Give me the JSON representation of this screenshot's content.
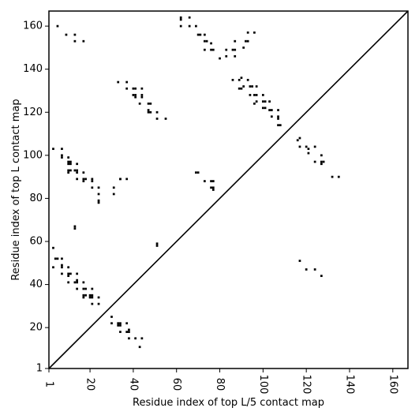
{
  "chart_data": {
    "type": "scatter",
    "title": "",
    "xlabel": "Residue index of top L/5 contact map",
    "ylabel": "Residue index of top L contact map",
    "xlim": [
      1,
      167
    ],
    "ylim": [
      1,
      167
    ],
    "x_ticks": [
      1,
      20,
      40,
      60,
      80,
      100,
      120,
      140,
      160
    ],
    "y_ticks": [
      1,
      20,
      40,
      60,
      80,
      100,
      120,
      140,
      160
    ],
    "diagonal": true,
    "grid": false,
    "legend": "none",
    "marker_color": "#000000",
    "series": [
      {
        "role": "upper-triangle",
        "points": [
          [
            5,
            160
          ],
          [
            9,
            156
          ],
          [
            13,
            156
          ],
          [
            13,
            153
          ],
          [
            17,
            153
          ],
          [
            62,
            164
          ],
          [
            62,
            163
          ],
          [
            62,
            160
          ],
          [
            66,
            164
          ],
          [
            66,
            160
          ],
          [
            69,
            160
          ],
          [
            70,
            156
          ],
          [
            71,
            156
          ],
          [
            73,
            156
          ],
          [
            73,
            153
          ],
          [
            74,
            153
          ],
          [
            73,
            149
          ],
          [
            76,
            152
          ],
          [
            76,
            149
          ],
          [
            77,
            149
          ],
          [
            80,
            145
          ],
          [
            83,
            146
          ],
          [
            83,
            149
          ],
          [
            86,
            149
          ],
          [
            87,
            149
          ],
          [
            87,
            146
          ],
          [
            87,
            153
          ],
          [
            86,
            135
          ],
          [
            89,
            135
          ],
          [
            90,
            136
          ],
          [
            89,
            131
          ],
          [
            90,
            131
          ],
          [
            91,
            132
          ],
          [
            91,
            150
          ],
          [
            92,
            153
          ],
          [
            93,
            153
          ],
          [
            93,
            157
          ],
          [
            96,
            157
          ],
          [
            93,
            135
          ],
          [
            94,
            132
          ],
          [
            95,
            132
          ],
          [
            94,
            128
          ],
          [
            97,
            132
          ],
          [
            96,
            128
          ],
          [
            97,
            128
          ],
          [
            96,
            124
          ],
          [
            97,
            125
          ],
          [
            100,
            128
          ],
          [
            100,
            125
          ],
          [
            101,
            125
          ],
          [
            100,
            122
          ],
          [
            101,
            122
          ],
          [
            103,
            125
          ],
          [
            103,
            121
          ],
          [
            104,
            121
          ],
          [
            104,
            118
          ],
          [
            107,
            121
          ],
          [
            107,
            118
          ],
          [
            107,
            117
          ],
          [
            107,
            114
          ],
          [
            108,
            114
          ],
          [
            33,
            134
          ],
          [
            37,
            134
          ],
          [
            37,
            131
          ],
          [
            40,
            131
          ],
          [
            41,
            131
          ],
          [
            40,
            128
          ],
          [
            41,
            128
          ],
          [
            41,
            127
          ],
          [
            44,
            131
          ],
          [
            44,
            128
          ],
          [
            44,
            127
          ],
          [
            43,
            124
          ],
          [
            47,
            124
          ],
          [
            48,
            124
          ],
          [
            47,
            121
          ],
          [
            47,
            120
          ],
          [
            48,
            120
          ],
          [
            51,
            120
          ],
          [
            51,
            117
          ],
          [
            55,
            117
          ],
          [
            3,
            103
          ],
          [
            7,
            103
          ],
          [
            7,
            100
          ],
          [
            7,
            99
          ],
          [
            10,
            99
          ],
          [
            10,
            97
          ],
          [
            11,
            97
          ],
          [
            10,
            96
          ],
          [
            11,
            96
          ],
          [
            14,
            96
          ],
          [
            10,
            93
          ],
          [
            11,
            93
          ],
          [
            13,
            93
          ],
          [
            14,
            93
          ],
          [
            17,
            92
          ],
          [
            10,
            92
          ],
          [
            14,
            92
          ],
          [
            17,
            89
          ],
          [
            18,
            89
          ],
          [
            17,
            88
          ],
          [
            14,
            89
          ],
          [
            21,
            89
          ],
          [
            21,
            88
          ],
          [
            21,
            85
          ],
          [
            24,
            85
          ],
          [
            24,
            82
          ],
          [
            31,
            85
          ],
          [
            31,
            82
          ],
          [
            34,
            89
          ],
          [
            37,
            89
          ],
          [
            24,
            79
          ],
          [
            24,
            78
          ],
          [
            34,
            89
          ],
          [
            69,
            92
          ],
          [
            70,
            92
          ],
          [
            73,
            88
          ],
          [
            76,
            88
          ],
          [
            77,
            88
          ],
          [
            76,
            85
          ],
          [
            77,
            85
          ],
          [
            77,
            84
          ],
          [
            13,
            67
          ],
          [
            13,
            66
          ],
          [
            51,
            59
          ],
          [
            51,
            58
          ],
          [
            116,
            107
          ],
          [
            117,
            108
          ],
          [
            117,
            104
          ],
          [
            120,
            104
          ],
          [
            121,
            103
          ],
          [
            121,
            101
          ],
          [
            124,
            104
          ],
          [
            127,
            100
          ],
          [
            124,
            97
          ],
          [
            127,
            97
          ],
          [
            128,
            97
          ],
          [
            127,
            96
          ],
          [
            132,
            90
          ],
          [
            135,
            90
          ],
          [
            117,
            51
          ],
          [
            120,
            47
          ],
          [
            124,
            47
          ],
          [
            127,
            44
          ]
        ]
      },
      {
        "role": "lower-triangle",
        "points": [
          [
            3,
            57
          ],
          [
            4,
            52
          ],
          [
            5,
            52
          ],
          [
            7,
            52
          ],
          [
            3,
            48
          ],
          [
            7,
            48
          ],
          [
            7,
            49
          ],
          [
            10,
            48
          ],
          [
            7,
            45
          ],
          [
            10,
            45
          ],
          [
            11,
            45
          ],
          [
            10,
            44
          ],
          [
            10,
            41
          ],
          [
            14,
            45
          ],
          [
            14,
            42
          ],
          [
            14,
            41
          ],
          [
            13,
            41
          ],
          [
            17,
            41
          ],
          [
            14,
            38
          ],
          [
            17,
            38
          ],
          [
            18,
            38
          ],
          [
            17,
            35
          ],
          [
            18,
            35
          ],
          [
            17,
            34
          ],
          [
            20,
            35
          ],
          [
            21,
            35
          ],
          [
            20,
            34
          ],
          [
            21,
            38
          ],
          [
            21,
            34
          ],
          [
            21,
            31
          ],
          [
            24,
            34
          ],
          [
            24,
            31
          ],
          [
            30,
            25
          ],
          [
            30,
            22
          ],
          [
            33,
            22
          ],
          [
            34,
            22
          ],
          [
            33,
            21
          ],
          [
            34,
            21
          ],
          [
            37,
            22
          ],
          [
            37,
            18
          ],
          [
            38,
            19
          ],
          [
            38,
            18
          ],
          [
            34,
            18
          ],
          [
            38,
            15
          ],
          [
            41,
            15
          ],
          [
            43,
            11
          ],
          [
            44,
            15
          ]
        ]
      }
    ]
  }
}
